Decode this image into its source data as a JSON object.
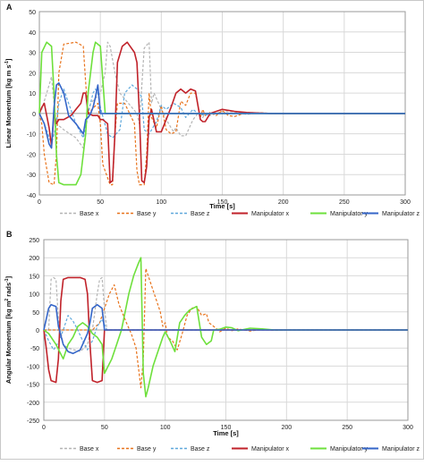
{
  "figure": {
    "border_color": "#c8c8c8"
  },
  "chart_data": [
    {
      "panel_label": "A",
      "type": "line",
      "xlabel": "Time [s]",
      "ylabel_parts": [
        "Linear Momentum [kg m s",
        "-1",
        "]"
      ],
      "xlim": [
        0,
        300
      ],
      "ylim": [
        -40,
        50
      ],
      "xticks": [
        0,
        50,
        100,
        150,
        200,
        250,
        300
      ],
      "yticks": [
        -40,
        -30,
        -20,
        -10,
        0,
        10,
        20,
        30,
        40,
        50
      ],
      "grid": true,
      "legend_position": "bottom",
      "series": [
        {
          "name": "Base x",
          "color": "#b4b4b4",
          "dashed": true,
          "width": 1.2,
          "x": [
            0,
            2,
            6,
            10,
            12,
            14,
            20,
            30,
            36,
            38,
            40,
            42,
            50,
            54,
            56,
            58,
            62,
            66,
            80,
            82,
            86,
            90,
            92,
            94,
            100,
            106,
            110,
            112,
            116,
            120,
            126,
            130,
            134,
            136,
            140,
            150,
            160,
            170,
            180,
            190,
            200,
            300
          ],
          "y": [
            0,
            2,
            10,
            18,
            5,
            -5,
            -8,
            -12,
            -17,
            -8,
            0,
            5,
            10,
            20,
            35,
            33,
            20,
            10,
            0,
            -5,
            32,
            35,
            5,
            10,
            2,
            -5,
            -9,
            -7,
            -11,
            -11,
            -3,
            0,
            -2,
            0,
            -1,
            1,
            0.8,
            -0.5,
            0.3,
            0.1,
            0,
            0
          ]
        },
        {
          "name": "Base y",
          "color": "#e8731c",
          "dashed": true,
          "width": 1.2,
          "x": [
            0,
            2,
            4,
            8,
            12,
            14,
            16,
            20,
            30,
            36,
            38,
            40,
            48,
            50,
            52,
            58,
            60,
            62,
            64,
            70,
            78,
            80,
            82,
            86,
            88,
            90,
            92,
            96,
            100,
            104,
            108,
            112,
            116,
            120,
            124,
            128,
            132,
            134,
            136,
            140,
            145,
            150,
            155,
            160,
            170,
            180,
            190,
            200,
            300
          ],
          "y": [
            0,
            -5,
            -20,
            -34,
            -35,
            -20,
            20,
            34,
            35,
            33,
            15,
            0,
            5,
            -5,
            -25,
            -35,
            -35,
            -10,
            5,
            5,
            -5,
            -28,
            -35,
            -35,
            -20,
            10,
            -2,
            -7,
            4,
            -8,
            -10,
            -9,
            6,
            4,
            10,
            10,
            -2,
            2,
            -1,
            0.5,
            -1,
            1.5,
            -1,
            -1.5,
            0.5,
            0.3,
            0.1,
            0,
            0
          ]
        },
        {
          "name": "Base z",
          "color": "#5fa8dc",
          "dashed": true,
          "width": 1.2,
          "x": [
            0,
            4,
            10,
            12,
            14,
            16,
            20,
            24,
            30,
            36,
            38,
            40,
            42,
            44,
            46,
            48,
            50,
            56,
            60,
            66,
            70,
            76,
            80,
            84,
            86,
            90,
            96,
            100,
            104,
            110,
            116,
            120,
            126,
            130,
            136,
            140,
            160,
            180,
            300
          ],
          "y": [
            0,
            -5,
            -15,
            -10,
            -5,
            5,
            12,
            5,
            -5,
            -12,
            -5,
            0,
            5,
            10,
            12,
            10,
            3,
            -10,
            -12,
            -8,
            10,
            14,
            12,
            8,
            -8,
            -10,
            -4,
            4,
            2,
            5,
            3,
            -2,
            2,
            0,
            -1,
            0,
            0,
            0,
            0
          ]
        },
        {
          "name": "Manipulator x",
          "color": "#c0222a",
          "dashed": false,
          "width": 1.6,
          "x": [
            0,
            2,
            4,
            8,
            10,
            12,
            14,
            16,
            20,
            26,
            30,
            34,
            36,
            38,
            40,
            44,
            48,
            50,
            52,
            56,
            58,
            60,
            62,
            64,
            68,
            72,
            78,
            80,
            82,
            84,
            86,
            88,
            90,
            92,
            96,
            100,
            104,
            108,
            112,
            116,
            120,
            124,
            128,
            132,
            134,
            136,
            140,
            150,
            160,
            170,
            180,
            190,
            200,
            300
          ],
          "y": [
            0,
            3,
            5,
            -7,
            -16,
            0,
            -5,
            -3,
            -3,
            -1,
            2,
            5,
            10,
            10,
            0,
            -1,
            -1,
            -3,
            -3,
            -5,
            -34,
            -33,
            -10,
            25,
            33,
            35,
            30,
            25,
            0,
            -33,
            -34,
            -26,
            -2,
            2,
            -9,
            -9,
            -3,
            3,
            10,
            12,
            10,
            12,
            11,
            -3,
            -4,
            -4,
            0,
            2,
            1,
            0.5,
            0.2,
            0,
            0,
            0
          ]
        },
        {
          "name": "Manipulator y",
          "color": "#6ee03c",
          "dashed": false,
          "width": 1.6,
          "x": [
            0,
            2,
            6,
            10,
            12,
            14,
            16,
            20,
            30,
            34,
            38,
            40,
            44,
            46,
            50,
            54,
            60,
            80,
            90,
            100,
            120,
            140,
            160,
            180,
            300
          ],
          "y": [
            0,
            30,
            35,
            33,
            10,
            -20,
            -34,
            -35,
            -35,
            -30,
            -10,
            10,
            30,
            35,
            33,
            0,
            0,
            0,
            0,
            0,
            0,
            0,
            0,
            0,
            0
          ]
        },
        {
          "name": "Manipulator z",
          "color": "#3465c8",
          "dashed": false,
          "width": 1.6,
          "x": [
            0,
            4,
            8,
            10,
            12,
            14,
            16,
            20,
            24,
            30,
            36,
            38,
            40,
            42,
            44,
            46,
            48,
            50,
            54,
            60,
            70,
            80,
            90,
            100,
            120,
            140,
            160,
            180,
            300
          ],
          "y": [
            0,
            -5,
            -15,
            -17,
            3,
            14,
            15,
            10,
            -1,
            -5,
            -10,
            -3,
            -2,
            0,
            3,
            8,
            14,
            0,
            0,
            0,
            0,
            0,
            0,
            0,
            0,
            0,
            0,
            0,
            0
          ]
        }
      ]
    },
    {
      "panel_label": "B",
      "type": "line",
      "xlabel": "Time [s]",
      "ylabel_parts": [
        "Angular Momentum [kg m",
        "2",
        " rads",
        "-1",
        "]"
      ],
      "xlim": [
        0,
        300
      ],
      "ylim": [
        -250,
        250
      ],
      "xticks": [
        0,
        50,
        100,
        150,
        200,
        250,
        300
      ],
      "yticks": [
        -250,
        -200,
        -150,
        -100,
        -50,
        0,
        50,
        100,
        150,
        200,
        250
      ],
      "grid": true,
      "legend_position": "bottom",
      "series": [
        {
          "name": "Base x",
          "color": "#b4b4b4",
          "dashed": true,
          "width": 1.2,
          "x": [
            0,
            4,
            6,
            8,
            10,
            12,
            16,
            20,
            30,
            36,
            38,
            40,
            44,
            46,
            48,
            50,
            52,
            56,
            60,
            70,
            80,
            100,
            120,
            140,
            160,
            180,
            300
          ],
          "y": [
            0,
            0,
            140,
            145,
            140,
            30,
            -40,
            -50,
            -60,
            -40,
            -10,
            0,
            100,
            140,
            145,
            60,
            0,
            0,
            0,
            0,
            0,
            0,
            0,
            0,
            0,
            0,
            0
          ]
        },
        {
          "name": "Base y",
          "color": "#e8731c",
          "dashed": true,
          "width": 1.2,
          "x": [
            0,
            10,
            20,
            30,
            40,
            46,
            50,
            54,
            58,
            62,
            68,
            72,
            76,
            80,
            82,
            84,
            88,
            92,
            96,
            98,
            100,
            102,
            106,
            110,
            114,
            118,
            122,
            126,
            130,
            134,
            136,
            140,
            145,
            150,
            155,
            160,
            170,
            180,
            190,
            200,
            300
          ],
          "y": [
            0,
            0,
            0,
            0,
            0,
            20,
            60,
            100,
            125,
            70,
            20,
            -10,
            -50,
            -160,
            -80,
            170,
            130,
            90,
            50,
            10,
            20,
            -20,
            -30,
            -55,
            -10,
            40,
            60,
            65,
            40,
            45,
            20,
            10,
            -5,
            5,
            -2,
            3,
            -3,
            2,
            -1,
            0,
            0
          ]
        },
        {
          "name": "Base z",
          "color": "#5fa8dc",
          "dashed": true,
          "width": 1.2,
          "x": [
            0,
            4,
            8,
            12,
            16,
            20,
            24,
            28,
            32,
            36,
            40,
            44,
            48,
            52,
            60,
            80,
            100,
            120,
            140,
            160,
            180,
            300
          ],
          "y": [
            0,
            -30,
            -55,
            -35,
            0,
            40,
            25,
            0,
            -30,
            -55,
            -30,
            10,
            30,
            0,
            0,
            0,
            0,
            0,
            0,
            0,
            0,
            0
          ]
        },
        {
          "name": "Manipulator x",
          "color": "#c0222a",
          "dashed": false,
          "width": 1.6,
          "x": [
            0,
            2,
            4,
            6,
            10,
            12,
            14,
            16,
            20,
            30,
            34,
            36,
            38,
            40,
            44,
            48,
            50,
            60,
            80,
            100,
            120,
            140,
            160,
            180,
            300
          ],
          "y": [
            0,
            -50,
            -110,
            -140,
            -145,
            -80,
            80,
            140,
            145,
            145,
            140,
            100,
            -40,
            -140,
            -145,
            -140,
            0,
            0,
            0,
            0,
            0,
            0,
            0,
            0,
            0
          ]
        },
        {
          "name": "Manipulator y",
          "color": "#6ee03c",
          "dashed": false,
          "width": 1.6,
          "x": [
            0,
            4,
            10,
            16,
            20,
            24,
            28,
            32,
            36,
            40,
            44,
            48,
            50,
            56,
            60,
            64,
            70,
            74,
            78,
            80,
            82,
            84,
            86,
            90,
            94,
            98,
            100,
            104,
            108,
            112,
            116,
            120,
            126,
            130,
            134,
            138,
            140,
            145,
            150,
            155,
            160,
            170,
            180,
            190,
            200,
            300
          ],
          "y": [
            0,
            -10,
            -40,
            -80,
            -40,
            -20,
            10,
            20,
            10,
            -10,
            -20,
            -40,
            -120,
            -80,
            -40,
            0,
            100,
            150,
            185,
            200,
            -120,
            -185,
            -160,
            -100,
            -60,
            -20,
            -5,
            -30,
            -60,
            20,
            40,
            55,
            65,
            -20,
            -40,
            -30,
            0,
            2,
            8,
            6,
            -2,
            5,
            3,
            0,
            0,
            0
          ]
        },
        {
          "name": "Manipulator z",
          "color": "#3465c8",
          "dashed": false,
          "width": 1.6,
          "x": [
            0,
            4,
            6,
            10,
            12,
            16,
            20,
            24,
            30,
            36,
            38,
            40,
            44,
            48,
            50,
            60,
            80,
            100,
            120,
            140,
            160,
            180,
            300
          ],
          "y": [
            0,
            60,
            70,
            65,
            10,
            -40,
            -60,
            -65,
            -55,
            -10,
            20,
            60,
            70,
            60,
            0,
            0,
            0,
            0,
            0,
            0,
            0,
            0,
            0
          ]
        }
      ]
    }
  ]
}
